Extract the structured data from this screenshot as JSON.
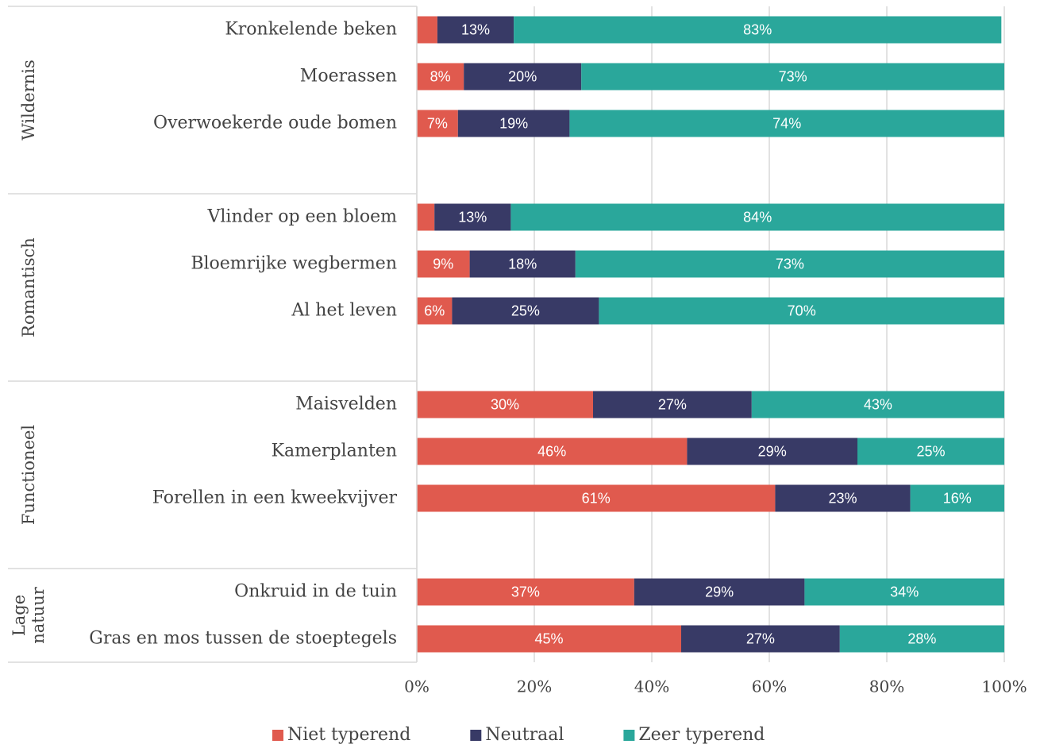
{
  "chart_data": {
    "type": "stacked-bar-horizontal",
    "groups": [
      {
        "label": "Wildernis",
        "categories": [
          "Kronkelende beken",
          "Moerassen",
          "Overwoekerde oude bomen"
        ]
      },
      {
        "label": "Romantisch",
        "categories": [
          "Vlinder op een bloem",
          "Bloemrijke wegbermen",
          "Al het leven"
        ]
      },
      {
        "label": "Functioneel",
        "categories": [
          "Maisvelden",
          "Kamerplanten",
          "Forellen in een kweekvijver"
        ]
      },
      {
        "label": "Lage natuur",
        "categories": [
          "Onkruid in de tuin",
          "Gras en mos tussen de stoeptegels"
        ]
      }
    ],
    "series": [
      {
        "name": "Niet typerend",
        "color": "#e05a4e",
        "values": [
          3.5,
          8,
          7,
          3,
          9,
          6,
          30,
          46,
          61,
          37,
          45
        ],
        "value_labels": [
          null,
          "8%",
          "7%",
          null,
          "9%",
          "6%",
          "30%",
          "46%",
          "61%",
          "37%",
          "45%"
        ]
      },
      {
        "name": "Neutraal",
        "color": "#383a66",
        "values": [
          13,
          20,
          19,
          13,
          18,
          25,
          27,
          29,
          23,
          29,
          27
        ],
        "value_labels": [
          "13%",
          "20%",
          "19%",
          "13%",
          "18%",
          "25%",
          "27%",
          "29%",
          "23%",
          "29%",
          "27%"
        ]
      },
      {
        "name": "Zeer typerend",
        "color": "#2aa79b",
        "values": [
          83,
          73,
          74,
          84,
          73,
          70,
          43,
          25,
          16,
          34,
          28
        ],
        "value_labels": [
          "83%",
          "73%",
          "74%",
          "84%",
          "73%",
          "70%",
          "43%",
          "25%",
          "16%",
          "34%",
          "28%"
        ]
      }
    ],
    "xlim": [
      0,
      100
    ],
    "xticks": [
      {
        "value": 0,
        "label": "0%"
      },
      {
        "value": 20,
        "label": "20%"
      },
      {
        "value": 40,
        "label": "40%"
      },
      {
        "value": 60,
        "label": "60%"
      },
      {
        "value": 80,
        "label": "80%"
      },
      {
        "value": 100,
        "label": "100%"
      }
    ],
    "grid": true,
    "legend": "bottom"
  }
}
